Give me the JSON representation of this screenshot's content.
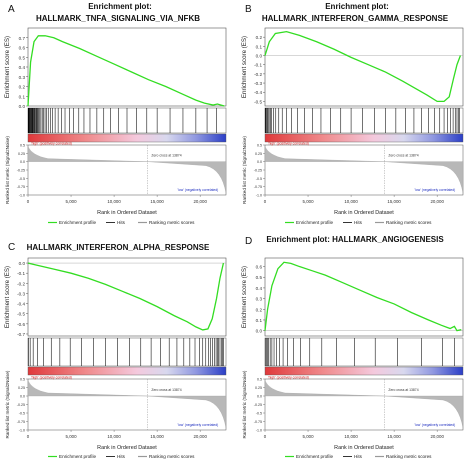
{
  "chart_data": [
    {
      "panel_letter": "A",
      "type": "line",
      "title_line1": "Enrichment plot:",
      "title_line2": "HALLMARK_TNFA_SIGNALING_VIA_NFKB",
      "ylabel": "Enrichment score (ES)",
      "ylabel2": "Ranked list metric (Signal2Noise)",
      "xlabel": "Rank in Ordered Dataset",
      "xlim": [
        0,
        23000
      ],
      "x_ticks": [
        "0",
        "5,000",
        "10,000",
        "15,000",
        "20,000"
      ],
      "ylim": [
        0,
        0.8
      ],
      "y_ticks": [
        "0.7",
        "0.6",
        "0.5",
        "0.4",
        "0.3",
        "0.2",
        "0.1",
        "0.0"
      ],
      "ylim2": [
        -1.0,
        0.5
      ],
      "y_ticks2": [
        "0.5",
        "0.25",
        "0.0",
        "-0.25",
        "-0.5",
        "-0.75",
        "-1.0"
      ],
      "es_curve": {
        "x": [
          0,
          300,
          700,
          1200,
          2000,
          3000,
          4000,
          6000,
          8000,
          10000,
          12000,
          14000,
          16000,
          18000,
          19500,
          20500,
          21500,
          22000,
          22800
        ],
        "y": [
          0.0,
          0.45,
          0.66,
          0.72,
          0.72,
          0.7,
          0.66,
          0.59,
          0.51,
          0.43,
          0.35,
          0.27,
          0.2,
          0.12,
          0.06,
          0.03,
          0.01,
          0.02,
          0.0
        ]
      },
      "hits": [
        30,
        80,
        130,
        190,
        240,
        300,
        360,
        420,
        480,
        550,
        620,
        700,
        780,
        860,
        950,
        1040,
        1140,
        1250,
        1370,
        1500,
        1650,
        1800,
        1980,
        2150,
        2350,
        2600,
        2850,
        3150,
        3500,
        3900,
        4300,
        4800,
        5300,
        5900,
        6500,
        7200,
        8000,
        8800,
        9600,
        10500,
        11500,
        12600,
        13800,
        15000,
        16500,
        18000,
        19500,
        20800,
        21900
      ],
      "label_pos": "'high' (positively correlated)",
      "label_neg": "'low' (negatively correlated)",
      "zero_cross": "Zero cross at 13874",
      "zero_cross_x": 13874,
      "metric_range": [
        0.45,
        -0.95
      ]
    },
    {
      "panel_letter": "B",
      "type": "line",
      "title_line1": "Enrichment plot:",
      "title_line2": "HALLMARK_INTERFERON_GAMMA_RESPONSE",
      "ylabel": "Enrichment score (ES)",
      "ylabel2": "Ranked list metric (Signal2Noise)",
      "xlabel": "Rank in Ordered Dataset",
      "xlim": [
        0,
        23000
      ],
      "x_ticks": [
        "0",
        "5,000",
        "10,000",
        "15,000",
        "20,000"
      ],
      "ylim": [
        -0.55,
        0.3
      ],
      "y_ticks": [
        "0.2",
        "0.1",
        "0.0",
        "-0.1",
        "-0.2",
        "-0.3",
        "-0.4",
        "-0.5"
      ],
      "ylim2": [
        -1.0,
        0.5
      ],
      "y_ticks2": [
        "0.5",
        "0.25",
        "0.0",
        "-0.25",
        "-0.5",
        "-0.75",
        "-1.0"
      ],
      "es_curve": {
        "x": [
          0,
          500,
          1200,
          2500,
          4000,
          6000,
          8000,
          10000,
          12000,
          14000,
          16000,
          17500,
          18800,
          20000,
          20800,
          21400,
          21900,
          22300,
          22700
        ],
        "y": [
          0.0,
          0.15,
          0.24,
          0.26,
          0.22,
          0.15,
          0.07,
          -0.02,
          -0.1,
          -0.18,
          -0.28,
          -0.36,
          -0.43,
          -0.5,
          -0.5,
          -0.45,
          -0.25,
          -0.1,
          0.0
        ]
      },
      "hits": [
        40,
        100,
        170,
        260,
        360,
        480,
        620,
        780,
        980,
        1250,
        1600,
        2000,
        2500,
        3100,
        3800,
        4600,
        5500,
        6500,
        7600,
        8800,
        10000,
        11300,
        12700,
        14000,
        15200,
        16300,
        17300,
        18200,
        19000,
        19700,
        20300,
        20800,
        21200,
        21550,
        21850,
        22100,
        22300,
        22450,
        22600
      ],
      "label_pos": "'high' (positively correlated)",
      "label_neg": "'low' (negatively correlated)",
      "zero_cross": "Zero cross at 13874",
      "zero_cross_x": 13874,
      "metric_range": [
        0.45,
        -0.95
      ]
    },
    {
      "panel_letter": "C",
      "type": "line",
      "title_line1": "",
      "title_line2": "HALLMARK_INTERFERON_ALPHA_RESPONSE",
      "ylabel": "Enrichment score (ES)",
      "ylabel2": "Ranked list metric (Signal2Noise)",
      "xlabel": "Rank in Ordered Dataset",
      "xlim": [
        0,
        23000
      ],
      "x_ticks": [
        "0",
        "5,000",
        "10,000",
        "15,000",
        "20,000"
      ],
      "ylim": [
        -0.72,
        0.05
      ],
      "y_ticks": [
        "0.0",
        "-0.1",
        "-0.2",
        "-0.3",
        "-0.4",
        "-0.5",
        "-0.6",
        "-0.7"
      ],
      "ylim2": [
        -1.0,
        0.5
      ],
      "y_ticks2": [
        "0.5",
        "0.25",
        "0.0",
        "-0.25",
        "-0.5",
        "-0.75",
        "-1.0"
      ],
      "es_curve": {
        "x": [
          0,
          500,
          1500,
          3000,
          5000,
          7000,
          9000,
          11000,
          13000,
          15000,
          17000,
          18500,
          19500,
          20300,
          20900,
          21400,
          21900,
          22300,
          22700
        ],
        "y": [
          0.0,
          -0.01,
          -0.03,
          -0.06,
          -0.1,
          -0.15,
          -0.21,
          -0.28,
          -0.35,
          -0.43,
          -0.52,
          -0.58,
          -0.63,
          -0.66,
          -0.65,
          -0.55,
          -0.35,
          -0.15,
          0.0
        ]
      },
      "hits": [
        60,
        250,
        600,
        1100,
        1800,
        2700,
        3700,
        4900,
        6200,
        7600,
        9000,
        10400,
        11800,
        13100,
        14300,
        15400,
        16400,
        17300,
        18100,
        18800,
        19400,
        19900,
        20300,
        20650,
        20950,
        21200,
        21450,
        21650,
        21850,
        22000,
        22150,
        22300,
        22450,
        22600,
        22700
      ],
      "label_pos": "'high' (positively correlated)",
      "label_neg": "'low' (negatively correlated)",
      "zero_cross": "Zero cross at 13874",
      "zero_cross_x": 13874,
      "metric_range": [
        0.45,
        -0.95
      ]
    },
    {
      "panel_letter": "D",
      "type": "line",
      "title_line1": "Enrichment plot: HALLMARK_ANGIOGENESIS",
      "title_line2": "",
      "ylabel": "Enrichment score (ES)",
      "ylabel2": "Ranked list metric (Signal2Noise)",
      "xlabel": "Rank in Ordered Dataset",
      "xlim": [
        0,
        23000
      ],
      "x_ticks": [
        "0",
        "5,000",
        "10,000",
        "15,000",
        "20,000"
      ],
      "ylim": [
        -0.05,
        0.68
      ],
      "y_ticks": [
        "0.6",
        "0.5",
        "0.4",
        "0.3",
        "0.2",
        "0.1",
        "0.0"
      ],
      "ylim2": [
        -1.0,
        0.5
      ],
      "y_ticks2": [
        "0.5",
        "0.25",
        "0.0",
        "-0.25",
        "-0.5",
        "-0.75",
        "-1.0"
      ],
      "es_curve": {
        "x": [
          0,
          300,
          800,
          1500,
          2200,
          3000,
          4000,
          5500,
          7000,
          9000,
          11000,
          13000,
          15000,
          17000,
          19000,
          20500,
          21500,
          22000,
          22300,
          22800
        ],
        "y": [
          0.0,
          0.2,
          0.42,
          0.58,
          0.64,
          0.63,
          0.6,
          0.56,
          0.52,
          0.45,
          0.38,
          0.31,
          0.25,
          0.17,
          0.1,
          0.05,
          0.02,
          0.04,
          0.0,
          0.01
        ]
      },
      "hits": [
        50,
        150,
        280,
        420,
        600,
        800,
        1050,
        1350,
        1700,
        2100,
        2600,
        3300,
        4100,
        5200,
        6600,
        8300,
        10400,
        12800,
        15400,
        18200,
        20600,
        22000
      ],
      "label_pos": "'high' (positively correlated)",
      "label_neg": "'low' (negatively correlated)",
      "zero_cross": "Zero cross at 13874",
      "zero_cross_x": 13874,
      "metric_range": [
        0.45,
        -0.95
      ]
    }
  ],
  "legend": {
    "enrichment_profile": "Enrichment profile",
    "hits": "Hits",
    "ranking_metric": "Ranking metric scores"
  },
  "colors": {
    "es_line": "#33dd22",
    "hits": "#000000",
    "pos_band": "#e0393b",
    "neg_band": "#2b3fc7",
    "metric_fill": "#b8b8b8",
    "pos_label": "#d42020",
    "neg_label": "#2030c0"
  }
}
